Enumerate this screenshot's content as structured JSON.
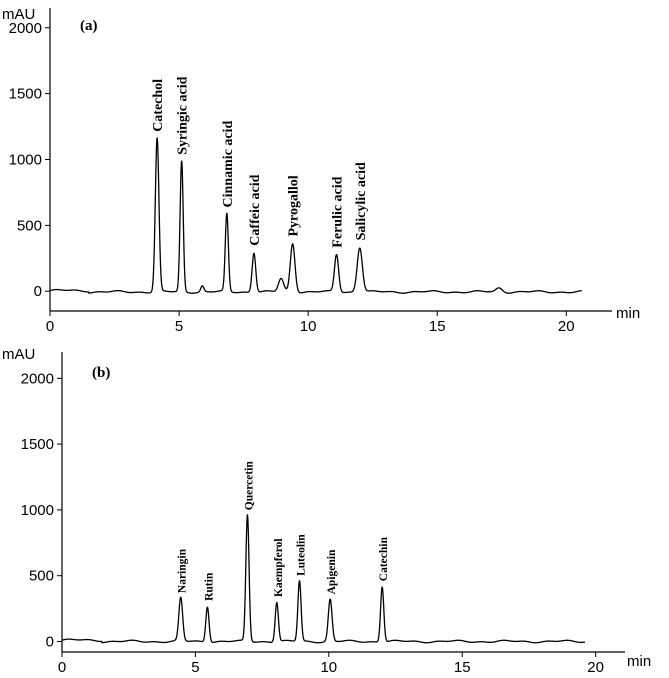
{
  "chart_data": [
    {
      "type": "line",
      "panel_label": "(a)",
      "ylabel": "mAU",
      "xlabel": "min",
      "xlim": [
        0,
        21.5
      ],
      "ylim": [
        -150,
        2150
      ],
      "x_ticks": [
        0,
        5,
        10,
        15,
        20
      ],
      "y_ticks": [
        0,
        500,
        1000,
        1500,
        2000
      ],
      "baseline": -5,
      "trace_end": 20.6,
      "peaks": [
        {
          "name": "Catechol",
          "rt": 4.15,
          "height": 1165,
          "width": 0.07
        },
        {
          "name": "Syringic acid",
          "rt": 5.1,
          "height": 990,
          "width": 0.06
        },
        {
          "name": "",
          "rt": 5.9,
          "height": 45,
          "width": 0.06
        },
        {
          "name": "Cinnamic acid",
          "rt": 6.85,
          "height": 590,
          "width": 0.06
        },
        {
          "name": "Caffeic acid",
          "rt": 7.9,
          "height": 300,
          "width": 0.07
        },
        {
          "name": "",
          "rt": 8.95,
          "height": 100,
          "width": 0.1
        },
        {
          "name": "Pyrogallol",
          "rt": 9.4,
          "height": 370,
          "width": 0.09
        },
        {
          "name": "Ferulic acid",
          "rt": 11.1,
          "height": 285,
          "width": 0.08
        },
        {
          "name": "Salicylic acid",
          "rt": 12.0,
          "height": 340,
          "width": 0.1
        },
        {
          "name": "",
          "rt": 17.4,
          "height": 30,
          "width": 0.12
        }
      ]
    },
    {
      "type": "line",
      "panel_label": "(b)",
      "ylabel": "mAU",
      "xlabel": "min",
      "xlim": [
        0,
        20.8
      ],
      "ylim": [
        -80,
        2200
      ],
      "x_ticks": [
        0,
        5,
        10,
        15,
        20
      ],
      "y_ticks": [
        0,
        500,
        1000,
        1500,
        2000
      ],
      "baseline": 0,
      "trace_end": 19.6,
      "peaks": [
        {
          "name": "Naringin",
          "rt": 4.45,
          "height": 330,
          "width": 0.07
        },
        {
          "name": "Rutin",
          "rt": 5.45,
          "height": 270,
          "width": 0.06
        },
        {
          "name": "Quercetin",
          "rt": 6.95,
          "height": 960,
          "width": 0.06
        },
        {
          "name": "Kaempferol",
          "rt": 8.05,
          "height": 300,
          "width": 0.06
        },
        {
          "name": "Luteolin",
          "rt": 8.9,
          "height": 460,
          "width": 0.06
        },
        {
          "name": "Apigenin",
          "rt": 10.05,
          "height": 320,
          "width": 0.07
        },
        {
          "name": "Catechin",
          "rt": 12.0,
          "height": 420,
          "width": 0.06
        }
      ]
    }
  ]
}
